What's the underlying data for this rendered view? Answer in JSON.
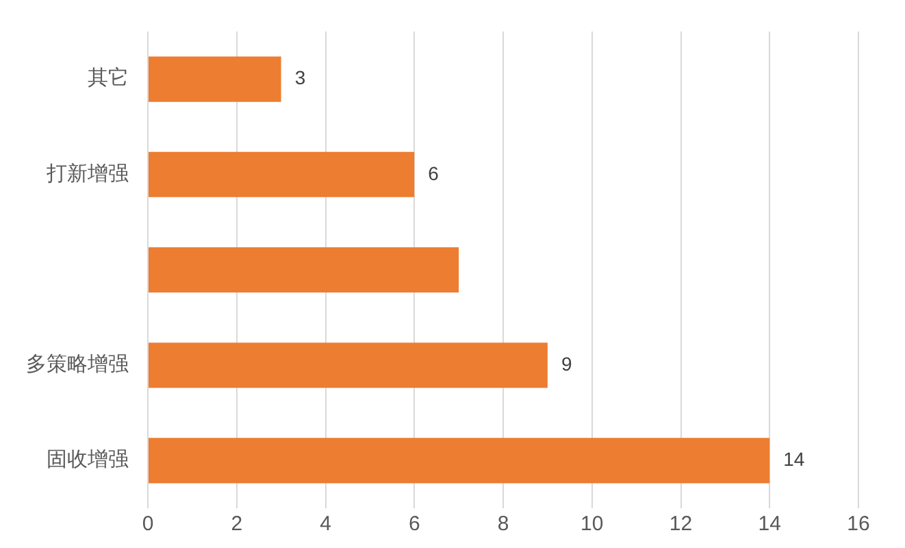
{
  "chart_data": {
    "type": "bar",
    "orientation": "horizontal",
    "categories": [
      "其它",
      "打新增强",
      null,
      "多策略增强",
      "固收增强"
    ],
    "values": [
      3,
      6,
      7,
      9,
      14
    ],
    "color": "#ed7d31",
    "value_labels": [
      "3",
      "6",
      null,
      "9",
      "14"
    ],
    "xlim": [
      0,
      16
    ],
    "xticks": [
      0,
      2,
      4,
      6,
      8,
      10,
      12,
      14,
      16
    ],
    "grid": "x",
    "legend": false
  }
}
